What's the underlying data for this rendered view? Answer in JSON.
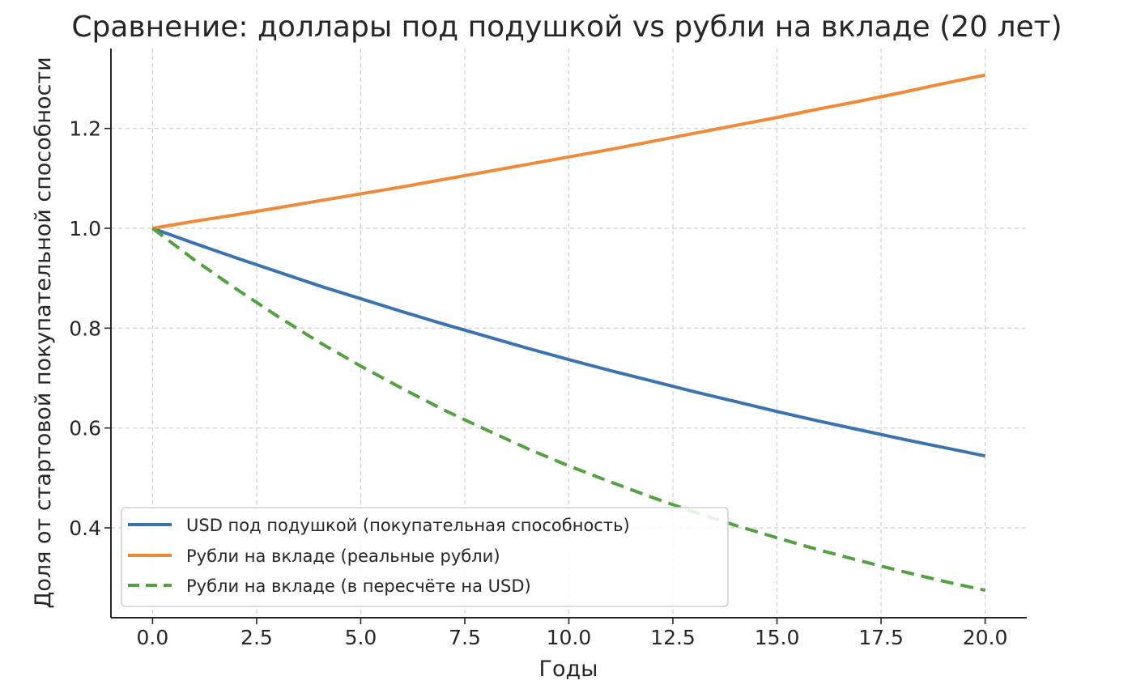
{
  "chart_data": {
    "type": "line",
    "title": "Сравнение: доллары под подушкой vs рубли на вкладе (20 лет)",
    "xlabel": "Годы",
    "ylabel": "Доля от стартовой покупательной способности",
    "xlim": [
      -1.0,
      21.0
    ],
    "ylim": [
      0.22,
      1.36
    ],
    "x_ticks": [
      0.0,
      2.5,
      5.0,
      7.5,
      10.0,
      12.5,
      15.0,
      17.5,
      20.0
    ],
    "x_tick_labels": [
      "0.0",
      "2.5",
      "5.0",
      "7.5",
      "10.0",
      "12.5",
      "15.0",
      "17.5",
      "20.0"
    ],
    "y_ticks": [
      0.4,
      0.6,
      0.8,
      1.0,
      1.2
    ],
    "y_tick_labels": [
      "0.4",
      "0.6",
      "0.8",
      "1.0",
      "1.2"
    ],
    "grid": true,
    "legend_position": "lower-left",
    "x": [
      0,
      1,
      2,
      3,
      4,
      5,
      6,
      7,
      8,
      9,
      10,
      11,
      12,
      13,
      14,
      15,
      16,
      17,
      18,
      19,
      20
    ],
    "series": [
      {
        "name": "USD под подушкой (покупательная способность)",
        "color": "#3b73b0",
        "style": "solid",
        "values": [
          1.0,
          0.97,
          0.941,
          0.913,
          0.885,
          0.859,
          0.833,
          0.808,
          0.784,
          0.76,
          0.737,
          0.715,
          0.694,
          0.673,
          0.653,
          0.633,
          0.614,
          0.596,
          0.578,
          0.561,
          0.544
        ]
      },
      {
        "name": "Рубли на вкладе (реальные рубли)",
        "color": "#ee8a3a",
        "style": "solid",
        "values": [
          1.0,
          1.014,
          1.027,
          1.041,
          1.055,
          1.069,
          1.083,
          1.098,
          1.113,
          1.128,
          1.143,
          1.158,
          1.174,
          1.19,
          1.206,
          1.222,
          1.239,
          1.255,
          1.272,
          1.29,
          1.307
        ]
      },
      {
        "name": "Рубли на вкладе (в пересчёте на USD)",
        "color": "#54a043",
        "style": "dashed",
        "values": [
          1.0,
          0.937,
          0.879,
          0.824,
          0.772,
          0.724,
          0.679,
          0.636,
          0.597,
          0.559,
          0.524,
          0.492,
          0.461,
          0.432,
          0.405,
          0.38,
          0.356,
          0.334,
          0.313,
          0.293,
          0.275
        ]
      }
    ]
  }
}
